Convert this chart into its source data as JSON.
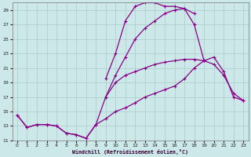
{
  "xlabel": "Windchill (Refroidissement éolien,°C)",
  "background_color": "#cce8e8",
  "grid_color": "#aacccc",
  "line_color": "#880088",
  "xlim": [
    -0.5,
    23.5
  ],
  "ylim": [
    11,
    30
  ],
  "xticks": [
    0,
    1,
    2,
    3,
    4,
    5,
    6,
    7,
    8,
    9,
    10,
    11,
    12,
    13,
    14,
    15,
    16,
    17,
    18,
    19,
    20,
    21,
    22,
    23
  ],
  "yticks": [
    11,
    13,
    15,
    17,
    19,
    21,
    23,
    25,
    27,
    29
  ],
  "series": {
    "line1_x": [
      9,
      10,
      11,
      12,
      13,
      14,
      15,
      16,
      17,
      18
    ],
    "line1_y": [
      19.5,
      23.0,
      27.5,
      29.5,
      30.0,
      30.0,
      29.5,
      29.5,
      29.2,
      28.5
    ],
    "line2_x": [
      9,
      10,
      11,
      12,
      13,
      14,
      15,
      16,
      17,
      18,
      19
    ],
    "line2_y": [
      17.0,
      20.0,
      22.5,
      25.0,
      26.5,
      27.5,
      28.5,
      29.0,
      29.2,
      27.0,
      22.0
    ],
    "line3_x": [
      0,
      1,
      2,
      3,
      4,
      5,
      6,
      7,
      8,
      9,
      10,
      11,
      12,
      13,
      14,
      15,
      16,
      17,
      18,
      19,
      20,
      21,
      22,
      23
    ],
    "line3_y": [
      14.5,
      12.8,
      13.2,
      13.2,
      13.0,
      12.0,
      11.8,
      11.3,
      13.2,
      14.0,
      15.0,
      15.5,
      16.2,
      17.0,
      17.5,
      18.0,
      18.5,
      19.5,
      21.0,
      22.0,
      22.5,
      20.5,
      17.0,
      16.5
    ],
    "line4_x": [
      0,
      1,
      2,
      3,
      4,
      5,
      6,
      7,
      8,
      9,
      10,
      11,
      12,
      13,
      14,
      15,
      16,
      17,
      18,
      19,
      20,
      21,
      22,
      23
    ],
    "line4_y": [
      14.5,
      12.8,
      13.2,
      13.2,
      13.0,
      12.0,
      11.8,
      11.3,
      13.2,
      17.0,
      19.0,
      20.0,
      20.5,
      21.0,
      21.5,
      21.8,
      22.0,
      22.2,
      22.2,
      22.0,
      21.5,
      20.0,
      17.5,
      16.5
    ]
  }
}
